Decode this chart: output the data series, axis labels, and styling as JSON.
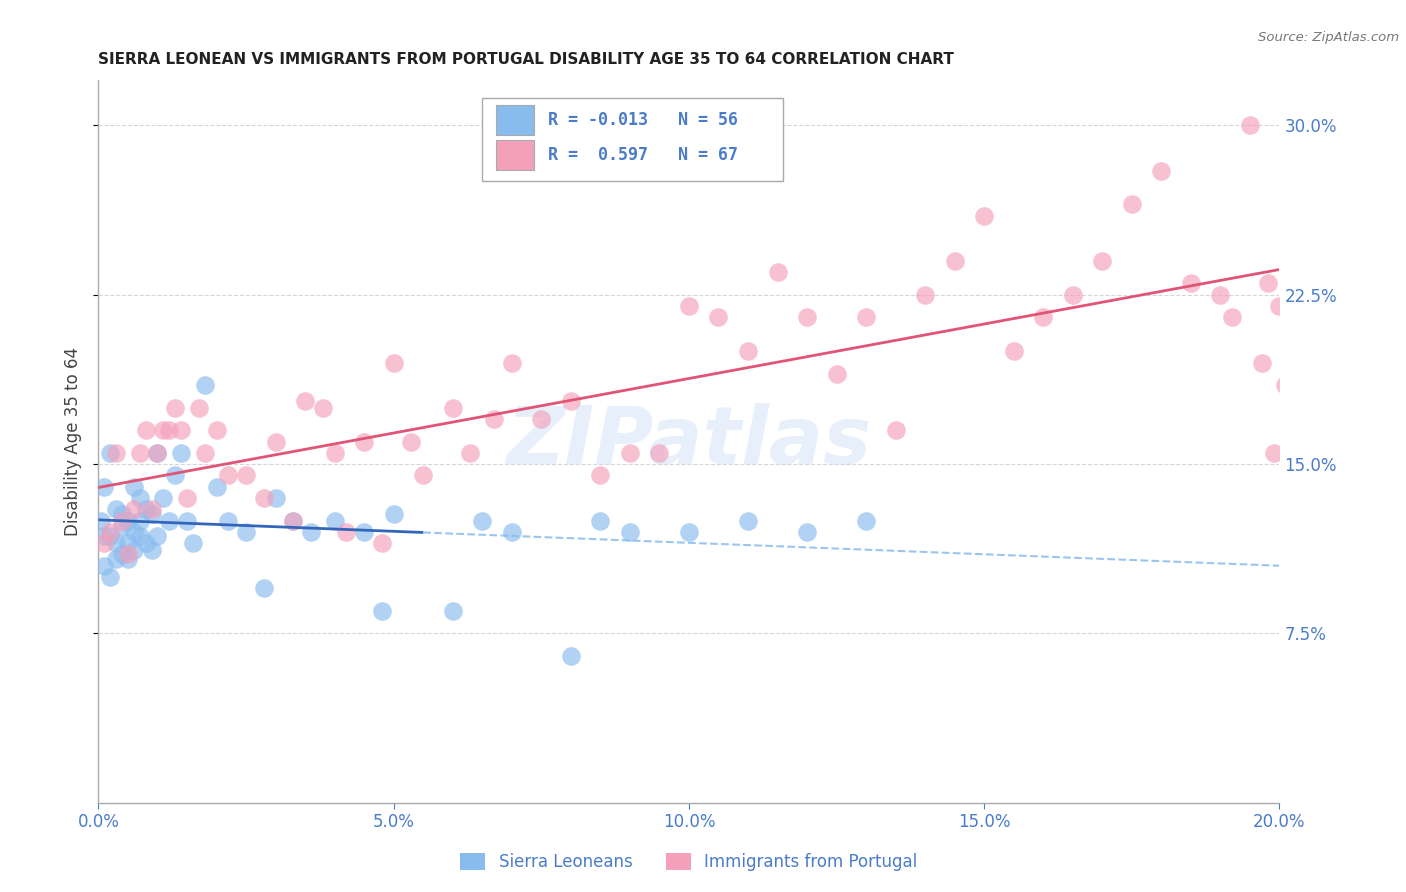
{
  "title": "SIERRA LEONEAN VS IMMIGRANTS FROM PORTUGAL DISABILITY AGE 35 TO 64 CORRELATION CHART",
  "source": "Source: ZipAtlas.com",
  "ylabel": "Disability Age 35 to 64",
  "title_fontsize": 11.5,
  "axis_label_color": "#4a7cc9",
  "background_color": "#ffffff",
  "grid_color": "#cccccc",
  "watermark": "ZIPatlas",
  "series1_color": "#88bbee",
  "series2_color": "#f4a0bb",
  "series1_trend_color": "#3366bb",
  "series2_trend_color": "#e05575",
  "series1_label": "Sierra Leoneans",
  "series2_label": "Immigrants from Portugal",
  "xmin": 0.0,
  "xmax": 0.2,
  "ymin": 0.0,
  "ymax": 0.32,
  "yticks": [
    0.075,
    0.15,
    0.225,
    0.3
  ],
  "xticks": [
    0.0,
    0.05,
    0.1,
    0.15,
    0.2
  ],
  "series1_x": [
    0.0005,
    0.001,
    0.001,
    0.001,
    0.002,
    0.002,
    0.002,
    0.003,
    0.003,
    0.003,
    0.004,
    0.004,
    0.004,
    0.005,
    0.005,
    0.005,
    0.006,
    0.006,
    0.006,
    0.007,
    0.007,
    0.007,
    0.008,
    0.008,
    0.009,
    0.009,
    0.01,
    0.01,
    0.011,
    0.012,
    0.013,
    0.014,
    0.015,
    0.016,
    0.018,
    0.02,
    0.022,
    0.025,
    0.028,
    0.03,
    0.033,
    0.036,
    0.04,
    0.045,
    0.048,
    0.05,
    0.06,
    0.065,
    0.07,
    0.08,
    0.085,
    0.09,
    0.1,
    0.11,
    0.12,
    0.13
  ],
  "series1_y": [
    0.125,
    0.14,
    0.118,
    0.105,
    0.155,
    0.118,
    0.1,
    0.13,
    0.115,
    0.108,
    0.122,
    0.11,
    0.128,
    0.125,
    0.115,
    0.108,
    0.14,
    0.12,
    0.112,
    0.135,
    0.125,
    0.118,
    0.13,
    0.115,
    0.128,
    0.112,
    0.155,
    0.118,
    0.135,
    0.125,
    0.145,
    0.155,
    0.125,
    0.115,
    0.185,
    0.14,
    0.125,
    0.12,
    0.095,
    0.135,
    0.125,
    0.12,
    0.125,
    0.12,
    0.085,
    0.128,
    0.085,
    0.125,
    0.12,
    0.065,
    0.125,
    0.12,
    0.12,
    0.125,
    0.12,
    0.125
  ],
  "series2_x": [
    0.001,
    0.002,
    0.003,
    0.004,
    0.005,
    0.006,
    0.007,
    0.008,
    0.009,
    0.01,
    0.011,
    0.012,
    0.013,
    0.014,
    0.015,
    0.017,
    0.018,
    0.02,
    0.022,
    0.025,
    0.028,
    0.03,
    0.033,
    0.035,
    0.038,
    0.04,
    0.042,
    0.045,
    0.048,
    0.05,
    0.053,
    0.055,
    0.06,
    0.063,
    0.067,
    0.07,
    0.075,
    0.08,
    0.085,
    0.09,
    0.095,
    0.1,
    0.105,
    0.11,
    0.115,
    0.12,
    0.125,
    0.13,
    0.135,
    0.14,
    0.145,
    0.15,
    0.155,
    0.16,
    0.165,
    0.17,
    0.175,
    0.18,
    0.185,
    0.19,
    0.192,
    0.195,
    0.197,
    0.198,
    0.199,
    0.2,
    0.201
  ],
  "series2_y": [
    0.115,
    0.12,
    0.155,
    0.125,
    0.11,
    0.13,
    0.155,
    0.165,
    0.13,
    0.155,
    0.165,
    0.165,
    0.175,
    0.165,
    0.135,
    0.175,
    0.155,
    0.165,
    0.145,
    0.145,
    0.135,
    0.16,
    0.125,
    0.178,
    0.175,
    0.155,
    0.12,
    0.16,
    0.115,
    0.195,
    0.16,
    0.145,
    0.175,
    0.155,
    0.17,
    0.195,
    0.17,
    0.178,
    0.145,
    0.155,
    0.155,
    0.22,
    0.215,
    0.2,
    0.235,
    0.215,
    0.19,
    0.215,
    0.165,
    0.225,
    0.24,
    0.26,
    0.2,
    0.215,
    0.225,
    0.24,
    0.265,
    0.28,
    0.23,
    0.225,
    0.215,
    0.3,
    0.195,
    0.23,
    0.155,
    0.22,
    0.185
  ],
  "s1_trend_solid_end": 0.055,
  "s1_trend_dashed_start": 0.055
}
